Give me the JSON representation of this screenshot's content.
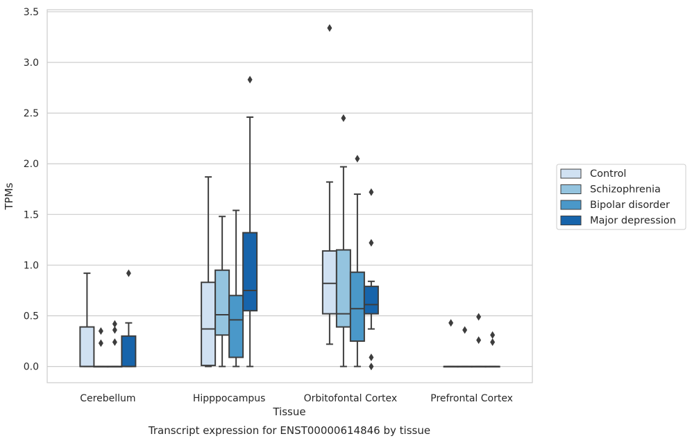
{
  "chart_data": {
    "type": "box",
    "title": "",
    "caption": "Transcript expression for ENST00000614846 by tissue",
    "xlabel": "Tissue",
    "ylabel": "TPMs",
    "ylim": [
      -0.16,
      3.52
    ],
    "yticks": [
      0.0,
      0.5,
      1.0,
      1.5,
      2.0,
      2.5,
      3.0,
      3.5
    ],
    "ytick_labels": [
      "0.0",
      "0.5",
      "1.0",
      "1.5",
      "2.0",
      "2.5",
      "3.0",
      "3.5"
    ],
    "grid": "horizontal",
    "legend_position": "right-outside",
    "categories": [
      "Cerebellum",
      "Hipppocampus",
      "Orbitofontal Cortex",
      "Prefrontal Cortex"
    ],
    "series": [
      {
        "name": "Control",
        "color": "#d0e1f2",
        "boxes": [
          {
            "whislo": 0.0,
            "q1": 0.0,
            "med": 0.0,
            "q3": 0.39,
            "whishi": 0.92,
            "fliers": []
          },
          {
            "whislo": 0.0,
            "q1": 0.01,
            "med": 0.37,
            "q3": 0.83,
            "whishi": 1.87,
            "fliers": []
          },
          {
            "whislo": 0.22,
            "q1": 0.52,
            "med": 0.82,
            "q3": 1.14,
            "whishi": 1.82,
            "fliers": [
              3.34
            ]
          },
          {
            "whislo": 0.0,
            "q1": 0.0,
            "med": 0.0,
            "q3": 0.0,
            "whishi": 0.0,
            "fliers": [
              0.43
            ]
          }
        ]
      },
      {
        "name": "Schizophrenia",
        "color": "#94c4df",
        "boxes": [
          {
            "whislo": 0.0,
            "q1": 0.0,
            "med": 0.0,
            "q3": 0.0,
            "whishi": 0.0,
            "fliers": [
              0.23,
              0.35
            ]
          },
          {
            "whislo": 0.0,
            "q1": 0.31,
            "med": 0.51,
            "q3": 0.95,
            "whishi": 1.48,
            "fliers": []
          },
          {
            "whislo": 0.0,
            "q1": 0.39,
            "med": 0.52,
            "q3": 1.15,
            "whishi": 1.97,
            "fliers": [
              2.45
            ]
          },
          {
            "whislo": 0.0,
            "q1": 0.0,
            "med": 0.0,
            "q3": 0.0,
            "whishi": 0.0,
            "fliers": [
              0.36
            ]
          }
        ]
      },
      {
        "name": "Bipolar disorder",
        "color": "#4a98c9",
        "boxes": [
          {
            "whislo": 0.0,
            "q1": 0.0,
            "med": 0.0,
            "q3": 0.0,
            "whishi": 0.0,
            "fliers": [
              0.24,
              0.36,
              0.42
            ]
          },
          {
            "whislo": 0.0,
            "q1": 0.09,
            "med": 0.46,
            "q3": 0.7,
            "whishi": 1.54,
            "fliers": []
          },
          {
            "whislo": 0.0,
            "q1": 0.25,
            "med": 0.57,
            "q3": 0.93,
            "whishi": 1.7,
            "fliers": [
              2.05
            ]
          },
          {
            "whislo": 0.0,
            "q1": 0.0,
            "med": 0.0,
            "q3": 0.0,
            "whishi": 0.0,
            "fliers": [
              0.26,
              0.49
            ]
          }
        ]
      },
      {
        "name": "Major depression",
        "color": "#1764ab",
        "boxes": [
          {
            "whislo": 0.0,
            "q1": 0.0,
            "med": 0.0,
            "q3": 0.3,
            "whishi": 0.43,
            "fliers": [
              0.92
            ]
          },
          {
            "whislo": 0.0,
            "q1": 0.55,
            "med": 0.75,
            "q3": 1.32,
            "whishi": 2.46,
            "fliers": [
              2.83
            ]
          },
          {
            "whislo": 0.37,
            "q1": 0.52,
            "med": 0.61,
            "q3": 0.79,
            "whishi": 0.84,
            "fliers": [
              0.0,
              0.09,
              1.22,
              1.72
            ]
          },
          {
            "whislo": 0.0,
            "q1": 0.0,
            "med": 0.0,
            "q3": 0.0,
            "whishi": 0.0,
            "fliers": [
              0.24,
              0.31
            ]
          }
        ]
      }
    ]
  }
}
